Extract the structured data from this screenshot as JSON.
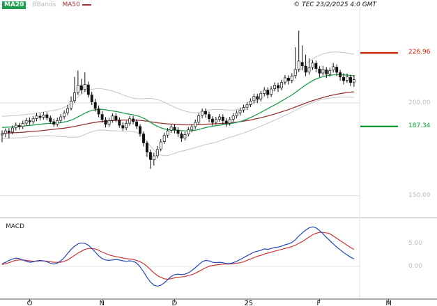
{
  "header": {
    "copyright": "© TEC 23/2/2025 4:0 GMT"
  },
  "legend": {
    "ma20": "MA20",
    "bbands": "BBands",
    "ma50": "MA50"
  },
  "y_axis": {
    "resistance": {
      "text": "226.96",
      "value": 226.96,
      "color": "#cc2200"
    },
    "gridline_200": {
      "text": "200.00",
      "value": 200.0
    },
    "support": {
      "text": "187.34",
      "value": 187.34,
      "color": "#089933"
    },
    "gridline_150": {
      "text": "150.00",
      "value": 150.0
    }
  },
  "macd_panel": {
    "label": "MACD",
    "label_5": {
      "text": "5.00",
      "value": 5.0
    },
    "label_0": {
      "text": "0.00",
      "value": 0.0
    }
  },
  "chart_data": {
    "type": "candlestick",
    "title": "Daily price chart with MA20, MA50, Bollinger Bands and MACD",
    "legend": [
      "MA20",
      "BBands",
      "MA50"
    ],
    "colors": {
      "ma20": "#1d9e4d",
      "ma50": "#993333",
      "bbands": "#c4c4c4",
      "macd": "#2244bb",
      "signal": "#cc3333",
      "resistance": "#cc2200",
      "support": "#089933",
      "candle": "#111111",
      "grid": "#dcdcdc"
    },
    "x_axis_months": [
      {
        "label": "O",
        "index": 8
      },
      {
        "label": "N",
        "index": 29
      },
      {
        "label": "D",
        "index": 50
      },
      {
        "label": "25",
        "index": 71
      },
      {
        "label": "F",
        "index": 92
      },
      {
        "label": "M",
        "index": 112
      }
    ],
    "price_panel": {
      "ylim": [
        150,
        240
      ],
      "gridlines": [
        200.0,
        150.0
      ],
      "levels": {
        "resistance": 226.96,
        "support": 187.34
      },
      "ohlc": [
        [
          182.8,
          185.2,
          178.8,
          183.5
        ],
        [
          183.6,
          186.3,
          181.5,
          185.0
        ],
        [
          184.9,
          186.4,
          180.9,
          184.2
        ],
        [
          184.3,
          187.9,
          183.1,
          186.5
        ],
        [
          186.6,
          189.4,
          185.2,
          188.0
        ],
        [
          187.9,
          189.3,
          185.6,
          187.2
        ],
        [
          187.3,
          190.4,
          186.0,
          189.0
        ],
        [
          189.1,
          192.0,
          187.8,
          190.5
        ],
        [
          190.4,
          192.1,
          188.2,
          189.8
        ],
        [
          189.9,
          192.9,
          188.6,
          191.5
        ],
        [
          191.6,
          194.6,
          190.2,
          193.0
        ],
        [
          192.9,
          194.4,
          190.6,
          192.2
        ],
        [
          192.3,
          195.1,
          191.0,
          193.5
        ],
        [
          193.6,
          195.0,
          190.6,
          192.0
        ],
        [
          191.9,
          193.3,
          188.7,
          190.0
        ],
        [
          189.9,
          191.5,
          187.1,
          188.5
        ],
        [
          188.6,
          192.0,
          187.3,
          190.5
        ],
        [
          190.6,
          194.0,
          189.3,
          192.5
        ],
        [
          192.6,
          196.0,
          191.2,
          194.5
        ],
        [
          194.7,
          199.0,
          193.3,
          197.0
        ],
        [
          197.2,
          203.5,
          196.0,
          201.0
        ],
        [
          201.2,
          214.0,
          200.0,
          205.5
        ],
        [
          205.7,
          217.5,
          204.3,
          209.5
        ],
        [
          209.3,
          213.0,
          205.0,
          207.0
        ],
        [
          207.2,
          216.5,
          206.0,
          210.0
        ],
        [
          209.7,
          211.5,
          202.9,
          204.5
        ],
        [
          204.3,
          206.0,
          198.8,
          200.5
        ],
        [
          200.3,
          202.2,
          195.3,
          197.0
        ],
        [
          196.8,
          198.6,
          192.3,
          194.0
        ],
        [
          193.8,
          195.6,
          189.4,
          191.0
        ],
        [
          190.8,
          192.4,
          186.8,
          188.5
        ],
        [
          188.6,
          192.0,
          187.2,
          190.5
        ],
        [
          190.6,
          194.4,
          189.3,
          193.0
        ],
        [
          192.9,
          194.5,
          189.5,
          191.0
        ],
        [
          190.8,
          192.3,
          186.6,
          188.0
        ],
        [
          187.8,
          189.6,
          184.9,
          186.5
        ],
        [
          186.6,
          190.4,
          185.3,
          189.0
        ],
        [
          189.1,
          193.0,
          187.8,
          191.5
        ],
        [
          191.4,
          193.0,
          188.5,
          190.0
        ],
        [
          189.8,
          191.2,
          185.9,
          187.5
        ],
        [
          187.3,
          188.5,
          181.8,
          183.5
        ],
        [
          183.3,
          184.7,
          176.6,
          178.5
        ],
        [
          178.3,
          179.5,
          170.9,
          173.5
        ],
        [
          173.3,
          174.9,
          164.5,
          169.5
        ],
        [
          169.4,
          173.2,
          166.3,
          171.5
        ],
        [
          171.6,
          176.8,
          170.2,
          175.0
        ],
        [
          175.2,
          180.6,
          174.0,
          179.0
        ],
        [
          179.2,
          184.0,
          177.9,
          182.5
        ],
        [
          182.7,
          186.5,
          181.3,
          185.0
        ],
        [
          185.2,
          188.6,
          183.9,
          187.0
        ],
        [
          186.9,
          188.4,
          183.6,
          185.5
        ],
        [
          185.3,
          186.9,
          181.6,
          183.5
        ],
        [
          183.3,
          184.6,
          179.0,
          181.0
        ],
        [
          181.1,
          184.5,
          179.7,
          183.0
        ],
        [
          183.2,
          187.0,
          181.9,
          185.5
        ],
        [
          185.7,
          188.6,
          184.2,
          187.0
        ],
        [
          187.2,
          191.0,
          185.9,
          189.5
        ],
        [
          189.7,
          194.5,
          188.4,
          193.0
        ],
        [
          193.2,
          197.0,
          191.8,
          195.5
        ],
        [
          195.4,
          197.0,
          192.1,
          194.0
        ],
        [
          193.8,
          195.3,
          189.6,
          191.5
        ],
        [
          191.3,
          192.8,
          187.7,
          189.5
        ],
        [
          189.6,
          192.5,
          188.3,
          191.0
        ],
        [
          191.1,
          194.0,
          189.8,
          192.5
        ],
        [
          192.4,
          193.9,
          188.6,
          190.5
        ],
        [
          190.3,
          191.8,
          187.2,
          189.0
        ],
        [
          189.1,
          192.5,
          187.8,
          191.0
        ],
        [
          191.2,
          194.5,
          189.9,
          193.0
        ],
        [
          193.1,
          196.0,
          191.7,
          194.5
        ],
        [
          194.7,
          197.5,
          193.2,
          196.0
        ],
        [
          196.2,
          199.0,
          194.8,
          197.5
        ],
        [
          197.7,
          200.5,
          196.2,
          199.0
        ],
        [
          199.1,
          202.5,
          197.7,
          201.0
        ],
        [
          201.2,
          205.0,
          199.8,
          203.5
        ],
        [
          203.4,
          204.9,
          199.9,
          202.0
        ],
        [
          202.2,
          206.5,
          200.8,
          205.0
        ],
        [
          205.1,
          208.5,
          203.7,
          207.0
        ],
        [
          206.9,
          208.4,
          202.5,
          204.5
        ],
        [
          204.6,
          209.0,
          203.2,
          207.5
        ],
        [
          207.7,
          211.0,
          206.2,
          209.5
        ],
        [
          209.4,
          210.9,
          205.9,
          208.0
        ],
        [
          208.1,
          212.5,
          206.8,
          211.0
        ],
        [
          211.2,
          215.0,
          209.8,
          213.5
        ],
        [
          213.4,
          214.9,
          209.9,
          212.0
        ],
        [
          212.1,
          216.0,
          210.7,
          214.5
        ],
        [
          214.7,
          230.0,
          213.2,
          218.0
        ],
        [
          218.2,
          239.0,
          216.8,
          222.5
        ],
        [
          221.8,
          231.0,
          217.6,
          220.0
        ],
        [
          219.8,
          226.0,
          214.4,
          216.5
        ],
        [
          216.6,
          224.0,
          215.2,
          219.0
        ],
        [
          219.2,
          223.0,
          217.8,
          221.5
        ],
        [
          221.3,
          222.8,
          216.4,
          218.5
        ],
        [
          218.3,
          219.8,
          213.9,
          216.0
        ],
        [
          216.1,
          220.0,
          214.7,
          218.0
        ],
        [
          217.8,
          219.3,
          213.4,
          215.5
        ],
        [
          215.6,
          219.0,
          214.2,
          217.5
        ],
        [
          217.7,
          221.5,
          216.3,
          219.5
        ],
        [
          219.3,
          220.8,
          214.4,
          216.5
        ],
        [
          216.3,
          217.8,
          211.9,
          214.0
        ],
        [
          213.8,
          215.9,
          210.0,
          212.0
        ],
        [
          212.2,
          215.8,
          210.8,
          214.0
        ],
        [
          213.8,
          215.2,
          209.1,
          211.0
        ],
        [
          211.2,
          215.0,
          208.7,
          212.5
        ]
      ],
      "ma20": [
        186.8,
        186.9,
        187.0,
        187.1,
        187.2,
        187.3,
        187.5,
        187.7,
        187.9,
        188.1,
        188.3,
        188.5,
        188.7,
        188.9,
        189.0,
        189.1,
        189.2,
        189.4,
        189.7,
        190.1,
        190.7,
        191.5,
        192.5,
        193.5,
        194.5,
        195.3,
        195.9,
        196.3,
        196.5,
        196.5,
        196.3,
        196.0,
        195.7,
        195.4,
        195.0,
        194.6,
        194.2,
        193.9,
        193.6,
        193.2,
        192.6,
        191.8,
        190.8,
        189.6,
        188.4,
        187.4,
        186.6,
        186.0,
        185.6,
        185.4,
        185.3,
        185.2,
        185.1,
        185.0,
        185.0,
        185.1,
        185.3,
        185.7,
        186.2,
        186.7,
        187.1,
        187.4,
        187.7,
        188.0,
        188.3,
        188.5,
        188.8,
        189.1,
        189.5,
        190.0,
        190.6,
        191.3,
        192.1,
        193.0,
        193.9,
        194.9,
        195.9,
        196.9,
        197.9,
        198.9,
        199.9,
        201.0,
        202.1,
        203.2,
        204.3,
        205.6,
        207.0,
        208.4,
        209.7,
        210.9,
        212.0,
        212.9,
        213.6,
        214.2,
        214.6,
        214.9,
        215.1,
        215.2,
        215.2,
        215.1,
        215.0,
        214.8,
        214.6
      ],
      "ma50": [
        183.6,
        183.7,
        183.8,
        183.9,
        184.0,
        184.1,
        184.2,
        184.4,
        184.5,
        184.7,
        184.8,
        185.0,
        185.2,
        185.4,
        185.6,
        185.8,
        186.0,
        186.2,
        186.4,
        186.7,
        187.0,
        187.3,
        187.7,
        188.1,
        188.5,
        188.9,
        189.2,
        189.5,
        189.8,
        190.0,
        190.2,
        190.4,
        190.5,
        190.6,
        190.7,
        190.8,
        190.8,
        190.8,
        190.8,
        190.7,
        190.6,
        190.4,
        190.2,
        189.9,
        189.6,
        189.3,
        189.1,
        188.9,
        188.7,
        188.6,
        188.5,
        188.4,
        188.3,
        188.2,
        188.2,
        188.2,
        188.2,
        188.3,
        188.4,
        188.5,
        188.6,
        188.7,
        188.8,
        188.9,
        189.0,
        189.1,
        189.3,
        189.5,
        189.7,
        189.9,
        190.2,
        190.5,
        190.8,
        191.2,
        191.6,
        192.0,
        192.5,
        193.0,
        193.5,
        194.0,
        194.6,
        195.2,
        195.8,
        196.4,
        197.1,
        197.8,
        198.5,
        199.2,
        199.9,
        200.6,
        201.2,
        201.8,
        202.4,
        202.9,
        203.4,
        203.9,
        204.3,
        204.7,
        205.0,
        205.3,
        205.6,
        205.8,
        206.0
      ],
      "bb_upper": [
        192.8,
        192.9,
        193.0,
        193.1,
        193.2,
        193.4,
        193.6,
        193.8,
        194.0,
        194.2,
        194.5,
        194.8,
        195.1,
        195.4,
        195.7,
        196.0,
        196.4,
        196.9,
        197.6,
        198.6,
        199.9,
        201.5,
        203.3,
        204.8,
        206.0,
        206.8,
        207.3,
        207.6,
        207.7,
        207.6,
        207.3,
        206.9,
        206.4,
        205.8,
        205.1,
        204.4,
        203.7,
        203.1,
        202.6,
        202.3,
        202.2,
        202.3,
        202.4,
        202.4,
        202.2,
        201.8,
        201.2,
        200.4,
        199.5,
        198.6,
        197.7,
        196.9,
        196.2,
        195.6,
        195.1,
        194.8,
        194.7,
        194.9,
        195.3,
        195.8,
        196.2,
        196.4,
        196.5,
        196.5,
        196.4,
        196.2,
        196.1,
        196.2,
        196.4,
        196.8,
        197.4,
        198.1,
        199.0,
        200.0,
        201.1,
        202.3,
        203.5,
        204.7,
        205.9,
        207.1,
        208.3,
        209.6,
        210.9,
        212.2,
        213.6,
        215.2,
        217.0,
        218.9,
        220.7,
        222.3,
        223.7,
        224.8,
        225.7,
        226.4,
        226.9,
        227.2,
        227.4,
        227.4,
        227.3,
        227.1,
        226.8,
        226.5,
        226.2
      ],
      "bb_lower": [
        180.8,
        180.9,
        181.0,
        181.1,
        181.2,
        181.2,
        181.4,
        181.6,
        181.8,
        182.0,
        182.1,
        182.2,
        182.3,
        182.4,
        182.3,
        182.2,
        182.0,
        181.9,
        181.8,
        181.6,
        181.5,
        181.5,
        181.7,
        182.2,
        183.0,
        183.8,
        184.5,
        185.0,
        185.3,
        185.4,
        185.3,
        185.1,
        185.0,
        185.0,
        184.9,
        184.8,
        184.7,
        184.7,
        184.6,
        184.1,
        183.0,
        181.3,
        179.2,
        176.8,
        174.6,
        173.0,
        172.0,
        171.6,
        171.7,
        172.2,
        172.9,
        173.5,
        174.0,
        174.4,
        174.9,
        175.4,
        175.9,
        176.5,
        177.1,
        177.6,
        178.0,
        178.4,
        178.9,
        179.5,
        180.2,
        180.8,
        181.5,
        182.0,
        182.6,
        183.2,
        183.8,
        184.5,
        185.2,
        186.0,
        186.7,
        187.5,
        188.3,
        189.1,
        189.9,
        190.7,
        191.5,
        192.4,
        193.3,
        194.2,
        195.0,
        196.0,
        197.0,
        197.9,
        198.7,
        199.5,
        200.3,
        201.0,
        201.5,
        202.0,
        202.3,
        202.6,
        202.8,
        203.0,
        203.1,
        203.1,
        203.2,
        203.1,
        203.0
      ]
    },
    "macd_panel": {
      "ylim": [
        -6,
        9
      ],
      "gridlines": [
        5.0,
        0.0
      ],
      "macd": [
        0.6,
        0.9,
        1.3,
        1.6,
        1.8,
        1.7,
        1.4,
        1.1,
        0.9,
        1.0,
        1.2,
        1.3,
        1.2,
        1.0,
        0.7,
        0.5,
        0.7,
        1.2,
        1.9,
        2.8,
        3.7,
        4.4,
        4.9,
        5.1,
        5.0,
        4.6,
        3.9,
        3.1,
        2.3,
        1.7,
        1.4,
        1.3,
        1.4,
        1.5,
        1.4,
        1.2,
        1.1,
        1.2,
        1.1,
        0.7,
        -0.1,
        -1.2,
        -2.4,
        -3.4,
        -4.1,
        -4.3,
        -4.1,
        -3.6,
        -2.9,
        -2.2,
        -1.8,
        -1.7,
        -1.8,
        -1.7,
        -1.4,
        -0.9,
        -0.3,
        0.4,
        1.0,
        1.3,
        1.2,
        0.9,
        0.8,
        0.9,
        0.8,
        0.6,
        0.6,
        0.8,
        1.1,
        1.5,
        1.9,
        2.3,
        2.7,
        3.1,
        3.3,
        3.5,
        3.8,
        3.7,
        3.9,
        4.1,
        4.2,
        4.4,
        4.7,
        4.9,
        5.2,
        5.8,
        6.6,
        7.3,
        7.9,
        8.4,
        8.6,
        8.4,
        7.8,
        7.1,
        6.3,
        5.6,
        4.9,
        4.2,
        3.6,
        3.0,
        2.5,
        2.0,
        1.6
      ],
      "signal": [
        0.4,
        0.6,
        0.8,
        1.1,
        1.3,
        1.4,
        1.4,
        1.3,
        1.2,
        1.1,
        1.1,
        1.2,
        1.2,
        1.1,
        1.0,
        0.9,
        0.9,
        0.9,
        1.1,
        1.4,
        1.9,
        2.4,
        2.9,
        3.3,
        3.7,
        3.9,
        3.9,
        3.8,
        3.5,
        3.1,
        2.8,
        2.5,
        2.3,
        2.1,
        2.0,
        1.8,
        1.7,
        1.6,
        1.5,
        1.3,
        1.0,
        0.6,
        0.0,
        -0.7,
        -1.4,
        -2.0,
        -2.4,
        -2.7,
        -2.8,
        -2.7,
        -2.5,
        -2.4,
        -2.3,
        -2.2,
        -2.0,
        -1.8,
        -1.5,
        -1.1,
        -0.7,
        -0.3,
        0.0,
        0.2,
        0.3,
        0.4,
        0.5,
        0.5,
        0.5,
        0.6,
        0.7,
        0.8,
        1.0,
        1.3,
        1.6,
        1.9,
        2.2,
        2.4,
        2.7,
        2.9,
        3.1,
        3.3,
        3.5,
        3.7,
        3.9,
        4.1,
        4.3,
        4.6,
        5.0,
        5.4,
        5.9,
        6.4,
        6.9,
        7.2,
        7.4,
        7.4,
        7.3,
        7.1,
        6.6,
        6.1,
        5.6,
        5.1,
        4.6,
        4.1,
        3.7
      ]
    }
  }
}
